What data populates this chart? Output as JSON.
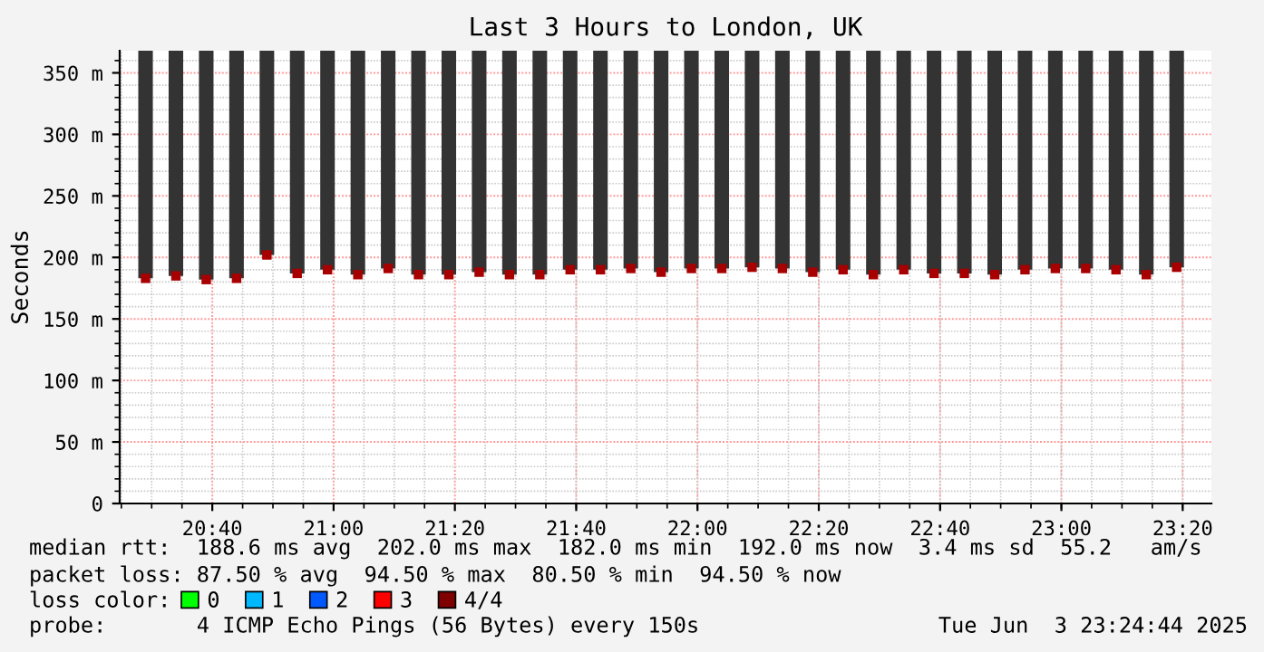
{
  "chart_data": {
    "type": "bar",
    "title": "Last 3 Hours to London, UK",
    "ylabel": "Seconds",
    "x": [
      20.4833,
      20.5667,
      20.65,
      20.7333,
      20.8167,
      20.9,
      20.9833,
      21.0667,
      21.15,
      21.2333,
      21.3167,
      21.4,
      21.4833,
      21.5667,
      21.65,
      21.7333,
      21.8167,
      21.9,
      21.9833,
      22.0667,
      22.15,
      22.2333,
      22.3167,
      22.4,
      22.4833,
      22.5667,
      22.65,
      22.7333,
      22.8167,
      22.9,
      22.9833,
      23.0667,
      23.15,
      23.2333,
      23.3167
    ],
    "series": [
      {
        "color": "#333333",
        "base": [
          183,
          185,
          182,
          183,
          202,
          187,
          190,
          186,
          191,
          186,
          186,
          188,
          186,
          186,
          190,
          190,
          191,
          188,
          191,
          191,
          192,
          191,
          188,
          190,
          186,
          190,
          187,
          187,
          186,
          190,
          191,
          191,
          190,
          186,
          192
        ],
        "values": [
          185,
          183,
          186,
          185,
          166,
          181,
          178,
          182,
          177,
          182,
          182,
          180,
          182,
          182,
          178,
          178,
          177,
          180,
          177,
          177,
          176,
          177,
          180,
          178,
          182,
          178,
          181,
          181,
          182,
          178,
          177,
          177,
          178,
          182,
          176
        ]
      },
      {
        "type": "scatter",
        "color": "#a80000",
        "marker": "square",
        "values": [
          183,
          185,
          182,
          183,
          202,
          187,
          190,
          186,
          191,
          186,
          186,
          188,
          186,
          186,
          190,
          190,
          191,
          188,
          191,
          191,
          192,
          191,
          188,
          190,
          186,
          190,
          187,
          187,
          186,
          190,
          191,
          191,
          190,
          186,
          192
        ]
      },
      {
        "type": "scatter",
        "name": "0",
        "color": "#00ff00",
        "values": [
          null,
          null,
          null,
          null,
          null,
          null,
          null,
          null,
          null,
          null,
          null,
          null,
          null,
          null,
          null,
          null,
          null,
          null,
          null,
          null,
          null,
          null,
          null,
          null,
          null,
          null,
          null,
          null,
          null,
          null,
          null,
          null,
          null,
          null,
          null
        ]
      },
      {
        "type": "scatter",
        "name": "1",
        "color": "#00b8ff",
        "values": [
          null,
          null,
          null,
          null,
          null,
          null,
          null,
          null,
          null,
          null,
          null,
          null,
          null,
          null,
          null,
          null,
          null,
          null,
          null,
          null,
          null,
          null,
          null,
          null,
          null,
          null,
          null,
          null,
          null,
          null,
          null,
          null,
          null,
          null,
          null
        ]
      },
      {
        "type": "scatter",
        "name": "2",
        "color": "#0059ff",
        "values": [
          null,
          null,
          null,
          null,
          null,
          null,
          null,
          null,
          null,
          null,
          null,
          null,
          null,
          null,
          null,
          null,
          null,
          null,
          null,
          null,
          null,
          null,
          null,
          null,
          null,
          null,
          null,
          null,
          null,
          null,
          null,
          null,
          null,
          null,
          null
        ]
      },
      {
        "type": "scatter",
        "name": "3",
        "color": "#ff0000",
        "values": [
          null,
          null,
          null,
          null,
          null,
          null,
          null,
          null,
          null,
          null,
          null,
          null,
          null,
          null,
          null,
          null,
          null,
          null,
          null,
          null,
          null,
          null,
          null,
          null,
          null,
          null,
          null,
          null,
          null,
          null,
          null,
          null,
          null,
          null,
          null
        ]
      },
      {
        "type": "scatter",
        "name": "4/4",
        "color": "#7e0000",
        "values": [
          null,
          null,
          null,
          null,
          null,
          null,
          null,
          null,
          null,
          null,
          null,
          null,
          null,
          null,
          null,
          null,
          null,
          null,
          null,
          null,
          null,
          null,
          null,
          null,
          null,
          null,
          null,
          null,
          null,
          null,
          null,
          null,
          null,
          null,
          null
        ]
      }
    ],
    "legend": "bottom left",
    "legend_title": "loss color:",
    "xlim": [
      20.4122,
      23.4122
    ],
    "xticks": [
      {
        "value": 20.6667,
        "label": "20:40"
      },
      {
        "value": 21.0,
        "label": "21:00"
      },
      {
        "value": 21.3333,
        "label": "21:20"
      },
      {
        "value": 21.6667,
        "label": "21:40"
      },
      {
        "value": 22.0,
        "label": "22:00"
      },
      {
        "value": 22.3333,
        "label": "22:20"
      },
      {
        "value": 22.6667,
        "label": "22:40"
      },
      {
        "value": 23.0,
        "label": "23:00"
      },
      {
        "value": 23.3333,
        "label": "23:20"
      }
    ],
    "ylim": [
      0,
      368
    ],
    "yticks": [
      0,
      {
        "value": 50,
        "label": "50 m"
      },
      {
        "value": 100,
        "label": "100 m"
      },
      {
        "value": 150,
        "label": "150 m"
      },
      {
        "value": 200,
        "label": "200 m"
      },
      {
        "value": 250,
        "label": "250 m"
      },
      {
        "value": 300,
        "label": "300 m"
      },
      {
        "value": 350,
        "label": "350 m"
      }
    ],
    "grid": true,
    "annotations": [
      "median rtt:  188.6 ms avg  202.0 ms max  182.0 ms min  192.0 ms now  3.4 ms sd  55.2   am/s",
      "packet loss: 87.50 % avg  94.50 % max  80.50 % min  94.50 % now",
      "probe:       4 ICMP Echo Pings (56 Bytes) every 150s",
      "Tue Jun  3 23:24:44 2025"
    ]
  }
}
